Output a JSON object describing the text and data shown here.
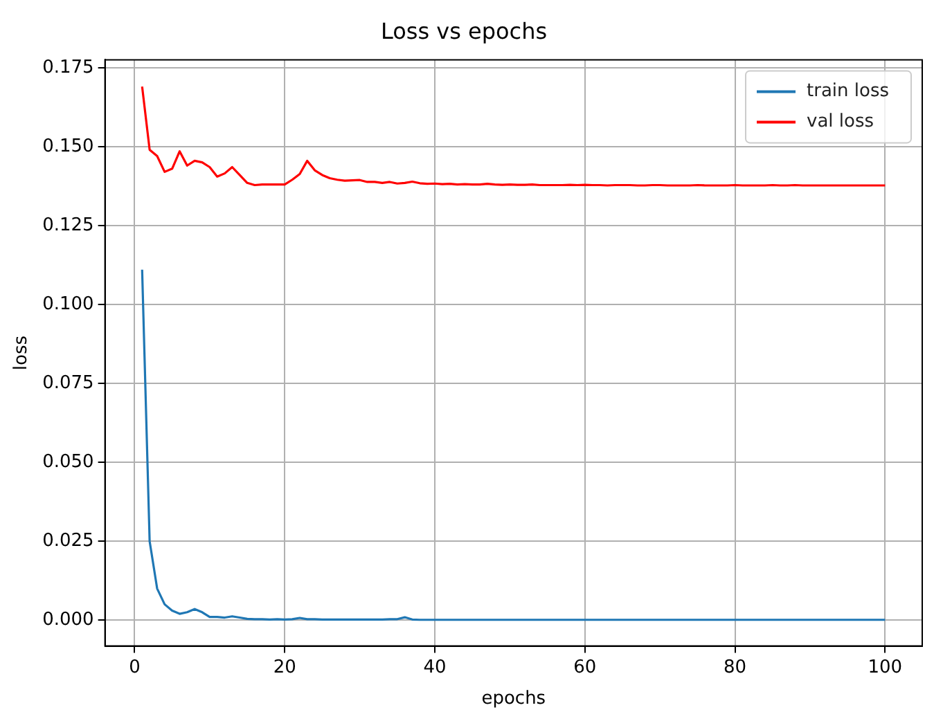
{
  "chart_data": {
    "type": "line",
    "title": "Loss vs epochs",
    "xlabel": "epochs",
    "ylabel": "loss",
    "x": [
      1,
      2,
      3,
      4,
      5,
      6,
      7,
      8,
      9,
      10,
      11,
      12,
      13,
      14,
      15,
      16,
      17,
      18,
      19,
      20,
      21,
      22,
      23,
      24,
      25,
      26,
      27,
      28,
      29,
      30,
      31,
      32,
      33,
      34,
      35,
      36,
      37,
      38,
      39,
      40,
      41,
      42,
      43,
      44,
      45,
      46,
      47,
      48,
      49,
      50,
      51,
      52,
      53,
      54,
      55,
      56,
      57,
      58,
      59,
      60,
      61,
      62,
      63,
      64,
      65,
      66,
      67,
      68,
      69,
      70,
      71,
      72,
      73,
      74,
      75,
      76,
      77,
      78,
      79,
      80,
      81,
      82,
      83,
      84,
      85,
      86,
      87,
      88,
      89,
      90,
      91,
      92,
      93,
      94,
      95,
      96,
      97,
      98,
      99,
      100
    ],
    "series": [
      {
        "name": "train loss",
        "color": "#1f77b4",
        "values": [
          0.111,
          0.025,
          0.01,
          0.005,
          0.003,
          0.002,
          0.0025,
          0.0035,
          0.0025,
          0.001,
          0.001,
          0.0008,
          0.0012,
          0.0008,
          0.0004,
          0.0003,
          0.0003,
          0.0002,
          0.0003,
          0.0002,
          0.0003,
          0.0007,
          0.0003,
          0.0003,
          0.0002,
          0.0002,
          0.0002,
          0.0002,
          0.0002,
          0.0002,
          0.0002,
          0.0002,
          0.0002,
          0.0003,
          0.0003,
          0.0009,
          0.0002,
          0.0001,
          0.0001,
          0.0001,
          0.0001,
          0.0001,
          0.0001,
          0.0001,
          0.0001,
          0.0001,
          0.0001,
          0.0001,
          0.0001,
          0.0001,
          0.0001,
          0.0001,
          0.0001,
          0.0001,
          0.0001,
          0.0001,
          0.0001,
          0.0001,
          0.0001,
          0.0001,
          0.0001,
          0.0001,
          0.0001,
          0.0001,
          0.0001,
          0.0001,
          0.0001,
          0.0001,
          0.0001,
          0.0001,
          0.0001,
          0.0001,
          0.0001,
          0.0001,
          0.0001,
          0.0001,
          0.0001,
          0.0001,
          0.0001,
          0.0001,
          0.0001,
          0.0001,
          0.0001,
          0.0001,
          0.0001,
          0.0001,
          0.0001,
          0.0001,
          0.0001,
          0.0001,
          0.0001,
          0.0001,
          0.0001,
          0.0001,
          0.0001,
          0.0001,
          0.0001,
          0.0001,
          0.0001,
          0.0001
        ]
      },
      {
        "name": "val loss",
        "color": "#ff0000",
        "values": [
          0.169,
          0.149,
          0.147,
          0.142,
          0.143,
          0.1485,
          0.144,
          0.1455,
          0.145,
          0.1435,
          0.1405,
          0.1415,
          0.1435,
          0.141,
          0.1385,
          0.1378,
          0.138,
          0.138,
          0.138,
          0.138,
          0.1395,
          0.1413,
          0.1455,
          0.1425,
          0.141,
          0.14,
          0.1395,
          0.1392,
          0.1393,
          0.1394,
          0.1388,
          0.1388,
          0.1385,
          0.1388,
          0.1383,
          0.1385,
          0.1389,
          0.1384,
          0.1382,
          0.1383,
          0.1381,
          0.1382,
          0.138,
          0.1381,
          0.138,
          0.138,
          0.1382,
          0.138,
          0.1379,
          0.138,
          0.1379,
          0.1379,
          0.138,
          0.1378,
          0.1378,
          0.1378,
          0.1378,
          0.1379,
          0.1378,
          0.1379,
          0.1378,
          0.1378,
          0.1377,
          0.1378,
          0.1378,
          0.1378,
          0.1377,
          0.1377,
          0.1378,
          0.1378,
          0.1377,
          0.1377,
          0.1377,
          0.1377,
          0.1378,
          0.1377,
          0.1377,
          0.1377,
          0.1377,
          0.1378,
          0.1377,
          0.1377,
          0.1377,
          0.1377,
          0.1378,
          0.1377,
          0.1377,
          0.1378,
          0.1377,
          0.1377,
          0.1377,
          0.1377,
          0.1377,
          0.1377,
          0.1377,
          0.1377,
          0.1377,
          0.1377,
          0.1377,
          0.1377
        ]
      }
    ],
    "xlim": [
      -3.95,
      104.95
    ],
    "ylim": [
      -0.0082,
      0.1775
    ],
    "xticks": [
      0,
      20,
      40,
      60,
      80,
      100
    ],
    "yticks": [
      {
        "value": 0,
        "label": "0.000"
      },
      {
        "value": 0.025,
        "label": "0.025"
      },
      {
        "value": 0.05,
        "label": "0.050"
      },
      {
        "value": 0.075,
        "label": "0.075"
      },
      {
        "value": 0.1,
        "label": "0.100"
      },
      {
        "value": 0.125,
        "label": "0.125"
      },
      {
        "value": 0.15,
        "label": "0.150"
      },
      {
        "value": 0.175,
        "label": "0.175"
      }
    ],
    "grid": true,
    "legend": "top right",
    "marker": "none",
    "line_style": "solid"
  }
}
